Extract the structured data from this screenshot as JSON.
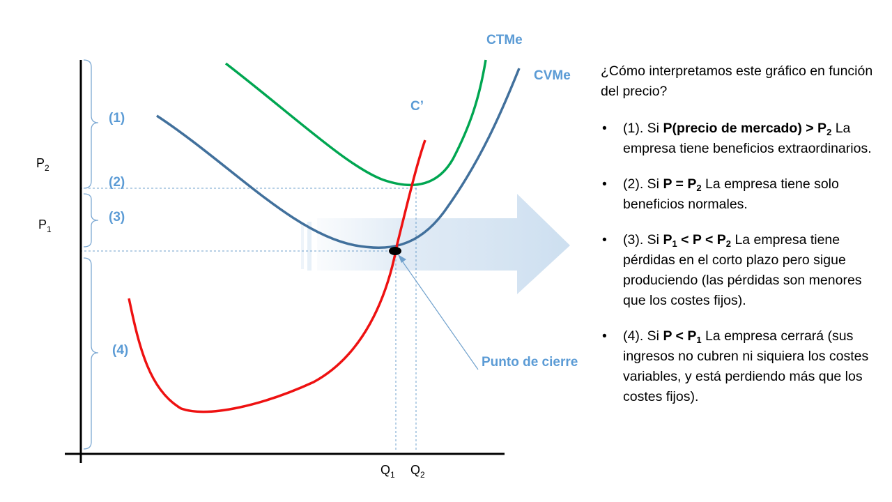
{
  "diagram": {
    "curves": {
      "ctme": {
        "label": "CTMe",
        "color": "#00a651"
      },
      "cvme": {
        "label": "CVMe",
        "color": "#41709c"
      },
      "cmarginal": {
        "label": "C’",
        "color": "#ee1111"
      }
    },
    "label_color": "#5b9bd5",
    "axis": {
      "p2": {
        "main": "P",
        "sub": "2"
      },
      "p1": {
        "main": "P",
        "sub": "1"
      },
      "q1": {
        "main": "Q",
        "sub": "1"
      },
      "q2": {
        "main": "Q",
        "sub": "2"
      }
    },
    "ranges": [
      {
        "label": "(1)"
      },
      {
        "label": "(2)"
      },
      {
        "label": "(3)"
      },
      {
        "label": "(4)"
      }
    ],
    "shutdown_point": {
      "label": "Punto de cierre"
    }
  },
  "explanation": {
    "intro": "¿Cómo interpretamos este gráfico en función del precio?",
    "bullet_symbol": "•",
    "items": [
      {
        "prefix": "(1). Si ",
        "condition_main": "P(precio de mercado) > P",
        "condition_sub": "2",
        "text": " La empresa tiene beneficios extraordinarios."
      },
      {
        "prefix": "(2). Si ",
        "condition_main": "P = P",
        "condition_sub": "2",
        "text": " La empresa tiene solo beneficios normales."
      },
      {
        "prefix": "(3). Si ",
        "c1_main": "P",
        "c1_sub": "1",
        "c2_main": " < P < P",
        "c2_sub": "2",
        "text": " La empresa tiene pérdidas en el corto plazo pero sigue produciendo (las pérdidas son menores que los costes fijos)."
      },
      {
        "prefix": "(4). Si ",
        "condition_main": "P < P",
        "condition_sub": "1",
        "text": " La empresa cerrará (sus ingresos no cubren ni siquiera los costes variables, y está perdiendo más que los costes fijos)."
      }
    ]
  }
}
